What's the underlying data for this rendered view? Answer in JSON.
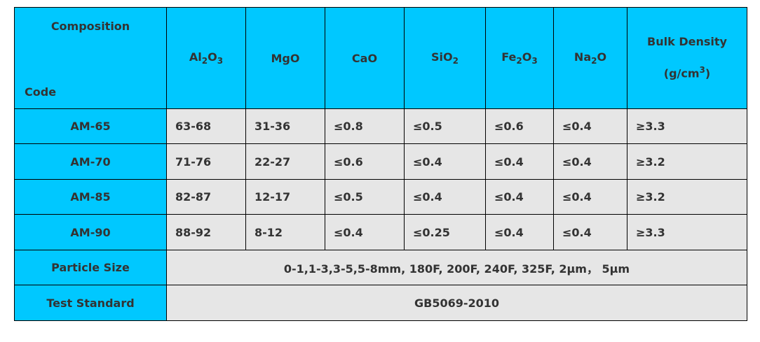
{
  "table": {
    "header": {
      "composition": "Composition",
      "code": "Code",
      "columns": [
        {
          "base": "Al",
          "sub1": "2",
          "mid": "O",
          "sub2": "3"
        },
        {
          "text": "MgO"
        },
        {
          "text": "CaO"
        },
        {
          "base": "SiO",
          "sub1": "2"
        },
        {
          "base": "Fe",
          "sub1": "2",
          "mid": "O",
          "sub2": "3"
        },
        {
          "base": "Na",
          "sub1": "2",
          "mid": "O"
        }
      ],
      "bulk_density": "Bulk Density",
      "bulk_unit_base": "(g/cm",
      "bulk_unit_sup": "3",
      "bulk_unit_end": ")"
    },
    "rows": [
      {
        "code": "AM-65",
        "values": [
          "63-68",
          "31-36",
          "≤0.8",
          "≤0.5",
          "≤0.6",
          "≤0.4",
          "≥3.3"
        ]
      },
      {
        "code": "AM-70",
        "values": [
          "71-76",
          "22-27",
          "≤0.6",
          "≤0.4",
          "≤0.4",
          "≤0.4",
          "≥3.2"
        ]
      },
      {
        "code": "AM-85",
        "values": [
          "82-87",
          "12-17",
          "≤0.5",
          "≤0.4",
          "≤0.4",
          "≤0.4",
          "≥3.2"
        ]
      },
      {
        "code": "AM-90",
        "values": [
          "88-92",
          "8-12",
          "≤0.4",
          "≤0.25",
          "≤0.4",
          "≤0.4",
          "≥3.3"
        ]
      }
    ],
    "particle_size": {
      "label": "Particle Size",
      "value": "0-1,1-3,3-5,5-8mm, 180F, 200F, 240F, 325F, 2μm， 5μm"
    },
    "test_standard": {
      "label": "Test Standard",
      "value": "GB5069-2010"
    }
  },
  "colors": {
    "header_bg": "#00c8ff",
    "cell_bg": "#e6e6e6",
    "text": "#333333",
    "border": "#000000"
  }
}
